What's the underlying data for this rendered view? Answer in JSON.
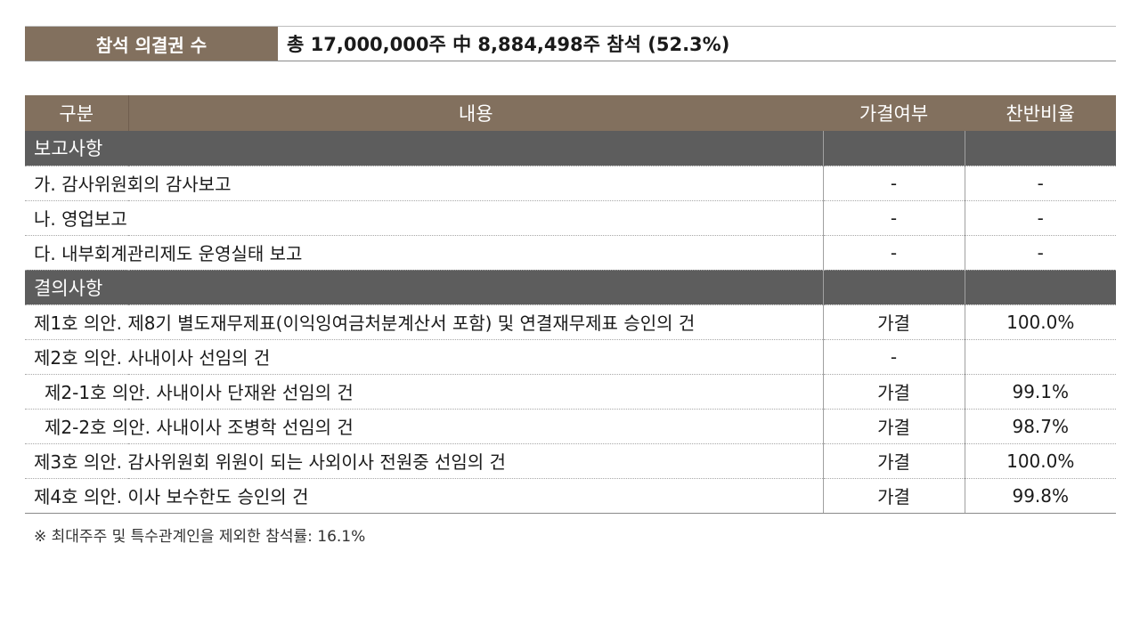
{
  "attendance": {
    "label": "참석 의결권 수",
    "value": "총 17,000,000주 中 8,884,498주 참석 (52.3%)"
  },
  "table": {
    "headers": {
      "division": "구분",
      "content": "내용",
      "result": "가결여부",
      "rate": "찬반비율"
    },
    "report_section": {
      "title": "보고사항",
      "items": [
        {
          "label": "가. 감사위원회의 감사보고",
          "result": "-",
          "rate": "-"
        },
        {
          "label": "나. 영업보고",
          "result": "-",
          "rate": "-"
        },
        {
          "label": "다. 내부회계관리제도 운영실태 보고",
          "result": "-",
          "rate": "-"
        }
      ]
    },
    "resolution_section": {
      "title": "결의사항",
      "items": [
        {
          "label": "제1호 의안. 제8기 별도재무제표(이익잉여금처분계산서 포함) 및 연결재무제표 승인의 건",
          "result": "가결",
          "rate": "100.0%"
        },
        {
          "label": "제2호 의안. 사내이사 선임의 건",
          "result": "-",
          "rate": ""
        },
        {
          "label": "제2-1호 의안. 사내이사 단재완 선임의 건",
          "result": "가결",
          "rate": "99.1%"
        },
        {
          "label": "제2-2호 의안. 사내이사 조병학 선임의 건",
          "result": "가결",
          "rate": "98.7%"
        },
        {
          "label": "제3호 의안. 감사위원회 위원이 되는 사외이사 전원중 선임의 건",
          "result": "가결",
          "rate": "100.0%"
        },
        {
          "label": "제4호 의안. 이사 보수한도 승인의 건",
          "result": "가결",
          "rate": "99.8%"
        }
      ]
    }
  },
  "footnote": "※ 최대주주 및 특수관계인을 제외한 참석률: 16.1%"
}
